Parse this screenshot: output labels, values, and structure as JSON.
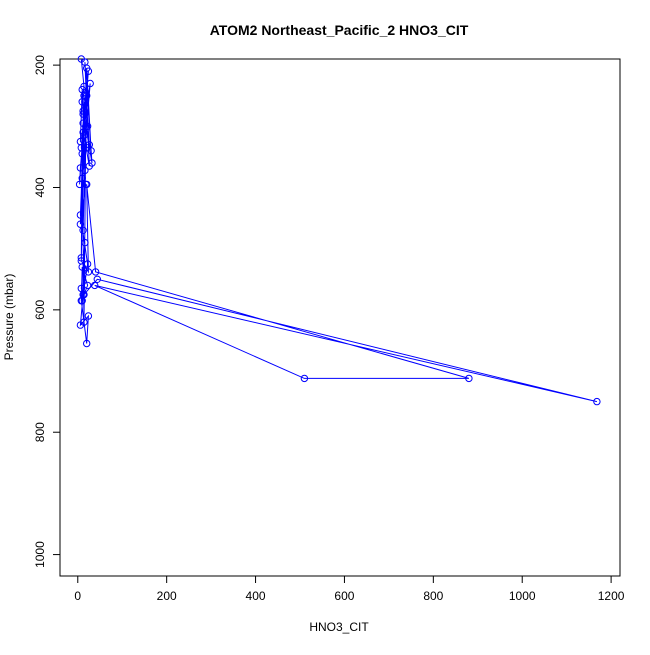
{
  "chart_data": {
    "type": "line",
    "title": "ATOM2 Northeast_Pacific_2 HNO3_CIT",
    "xlabel": "HNO3_CIT",
    "ylabel": "Pressure (mbar)",
    "xlim": [
      -40,
      1220
    ],
    "ylim": [
      1035,
      190
    ],
    "y_reversed": true,
    "x_ticks": [
      0,
      200,
      400,
      600,
      800,
      1000,
      1200
    ],
    "y_ticks": [
      200,
      400,
      600,
      800,
      1000
    ],
    "grid": false,
    "color": "#0000ff",
    "series": [
      {
        "x": [
          8,
          14,
          10,
          22,
          18,
          26,
          12,
          30,
          20,
          14,
          26,
          16,
          32,
          12,
          20,
          6,
          10,
          16,
          8,
          12,
          24,
          6,
          4,
          12,
          28,
          10,
          18,
          6,
          14,
          8,
          24,
          20,
          40,
          880,
          510,
          38,
          1168,
          44,
          14,
          22,
          10,
          8,
          20,
          24,
          6,
          12,
          8,
          16,
          10,
          22,
          6,
          16,
          8,
          10,
          14,
          18,
          12,
          20
        ],
        "y": [
          190,
          235,
          260,
          300,
          245,
          330,
          280,
          340,
          205,
          315,
          365,
          195,
          360,
          275,
          335,
          325,
          240,
          372,
          335,
          295,
          210,
          368,
          395,
          310,
          230,
          385,
          395,
          460,
          250,
          520,
          538,
          395,
          538,
          712,
          712,
          560,
          750,
          550,
          575,
          560,
          530,
          585,
          655,
          610,
          625,
          575,
          565,
          490,
          585,
          525,
          445,
          260,
          515,
          345,
          620,
          300,
          470,
          250
        ]
      }
    ]
  }
}
